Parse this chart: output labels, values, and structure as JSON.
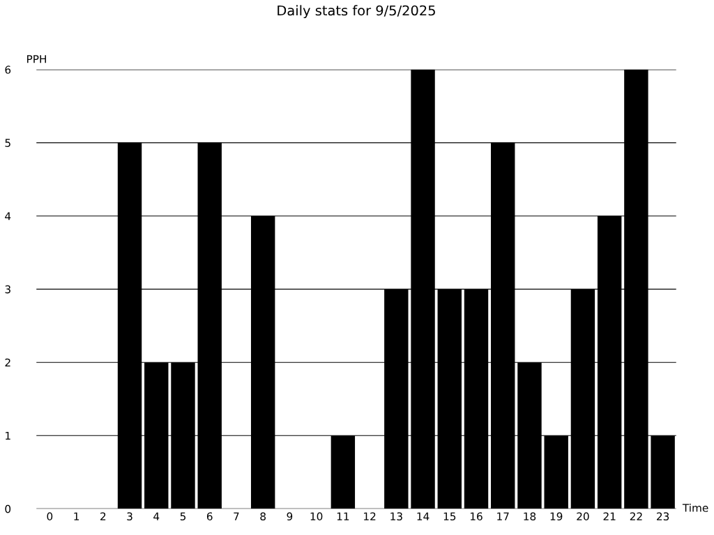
{
  "chart_data": {
    "type": "bar",
    "title": "Daily stats for 9/5/2025",
    "xlabel": "Time",
    "ylabel": "PPH",
    "categories": [
      "0",
      "1",
      "2",
      "3",
      "4",
      "5",
      "6",
      "7",
      "8",
      "9",
      "10",
      "11",
      "12",
      "13",
      "14",
      "15",
      "16",
      "17",
      "18",
      "19",
      "20",
      "21",
      "22",
      "23"
    ],
    "values": [
      0,
      0,
      0,
      5,
      2,
      2,
      5,
      0,
      4,
      0,
      0,
      1,
      0,
      3,
      6,
      3,
      3,
      5,
      2,
      1,
      3,
      4,
      6,
      1
    ],
    "color": "#000000",
    "ylim": [
      0,
      6
    ],
    "yticks": [
      0,
      1,
      2,
      3,
      4,
      5,
      6
    ],
    "grid": "y",
    "legend": false
  }
}
